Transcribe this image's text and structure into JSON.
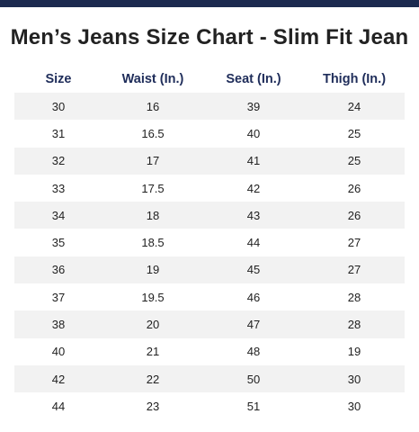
{
  "colors": {
    "brand_navy": "#1c2a4f",
    "header_text": "#1f2d5a",
    "row_stripe": "#f2f2f2"
  },
  "chart": {
    "title": "Men’s Jeans Size Chart - Slim Fit Jean"
  },
  "chart_data": {
    "type": "table",
    "title": "Men’s Jeans Size Chart - Slim Fit Jean",
    "columns": [
      "Size",
      "Waist (In.)",
      "Seat (In.)",
      "Thigh (In.)"
    ],
    "rows": [
      [
        "30",
        "16",
        "39",
        "24"
      ],
      [
        "31",
        "16.5",
        "40",
        "25"
      ],
      [
        "32",
        "17",
        "41",
        "25"
      ],
      [
        "33",
        "17.5",
        "42",
        "26"
      ],
      [
        "34",
        "18",
        "43",
        "26"
      ],
      [
        "35",
        "18.5",
        "44",
        "27"
      ],
      [
        "36",
        "19",
        "45",
        "27"
      ],
      [
        "37",
        "19.5",
        "46",
        "28"
      ],
      [
        "38",
        "20",
        "47",
        "28"
      ],
      [
        "40",
        "21",
        "48",
        "19"
      ],
      [
        "42",
        "22",
        "50",
        "30"
      ],
      [
        "44",
        "23",
        "51",
        "30"
      ]
    ]
  }
}
